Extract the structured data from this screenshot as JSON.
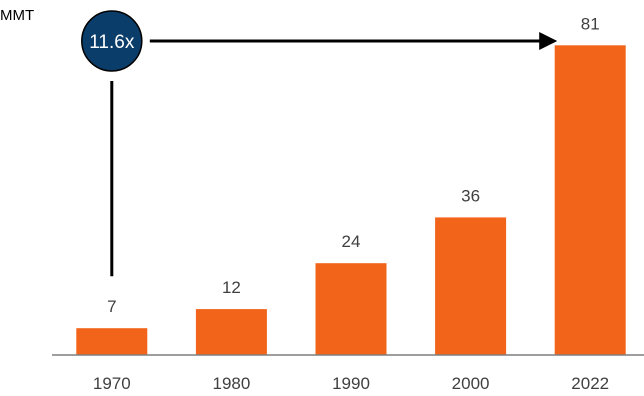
{
  "chart_data": {
    "type": "bar",
    "unit_label": "MMT",
    "categories": [
      "1970",
      "1980",
      "1990",
      "2000",
      "2022"
    ],
    "values": [
      7,
      12,
      24,
      36,
      81
    ],
    "data_labels": [
      "7",
      "12",
      "24",
      "36",
      "81"
    ],
    "ylim": [
      0,
      85
    ],
    "grid": false,
    "colors": {
      "bar": "#f26419",
      "badge": "#0b3d6b",
      "axis": "#7f7f7f",
      "arrow": "#000000"
    },
    "annotation": {
      "label": "11.6x",
      "from_category": "1970",
      "to_category": "2022"
    }
  }
}
